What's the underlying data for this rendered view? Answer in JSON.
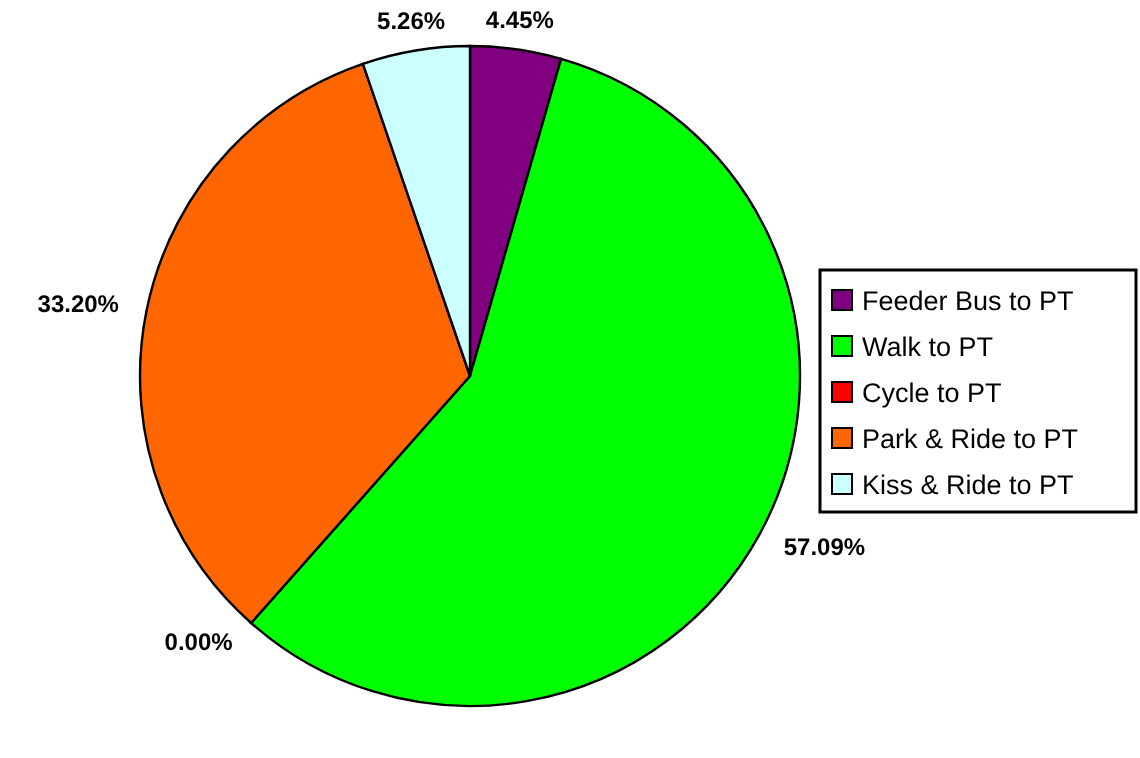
{
  "chart_data": {
    "type": "pie",
    "categories": [
      "Feeder Bus to PT",
      "Walk to PT",
      "Cycle to PT",
      "Park & Ride to PT",
      "Kiss & Ride to PT"
    ],
    "values": [
      4.45,
      57.09,
      0.0,
      33.2,
      5.26
    ],
    "value_labels": [
      "4.45%",
      "57.09%",
      "0.00%",
      "33.20%",
      "5.26%"
    ],
    "colors": [
      "#800080",
      "#00ff00",
      "#ff0000",
      "#ff6600",
      "#ccffff"
    ],
    "legend": "right"
  }
}
